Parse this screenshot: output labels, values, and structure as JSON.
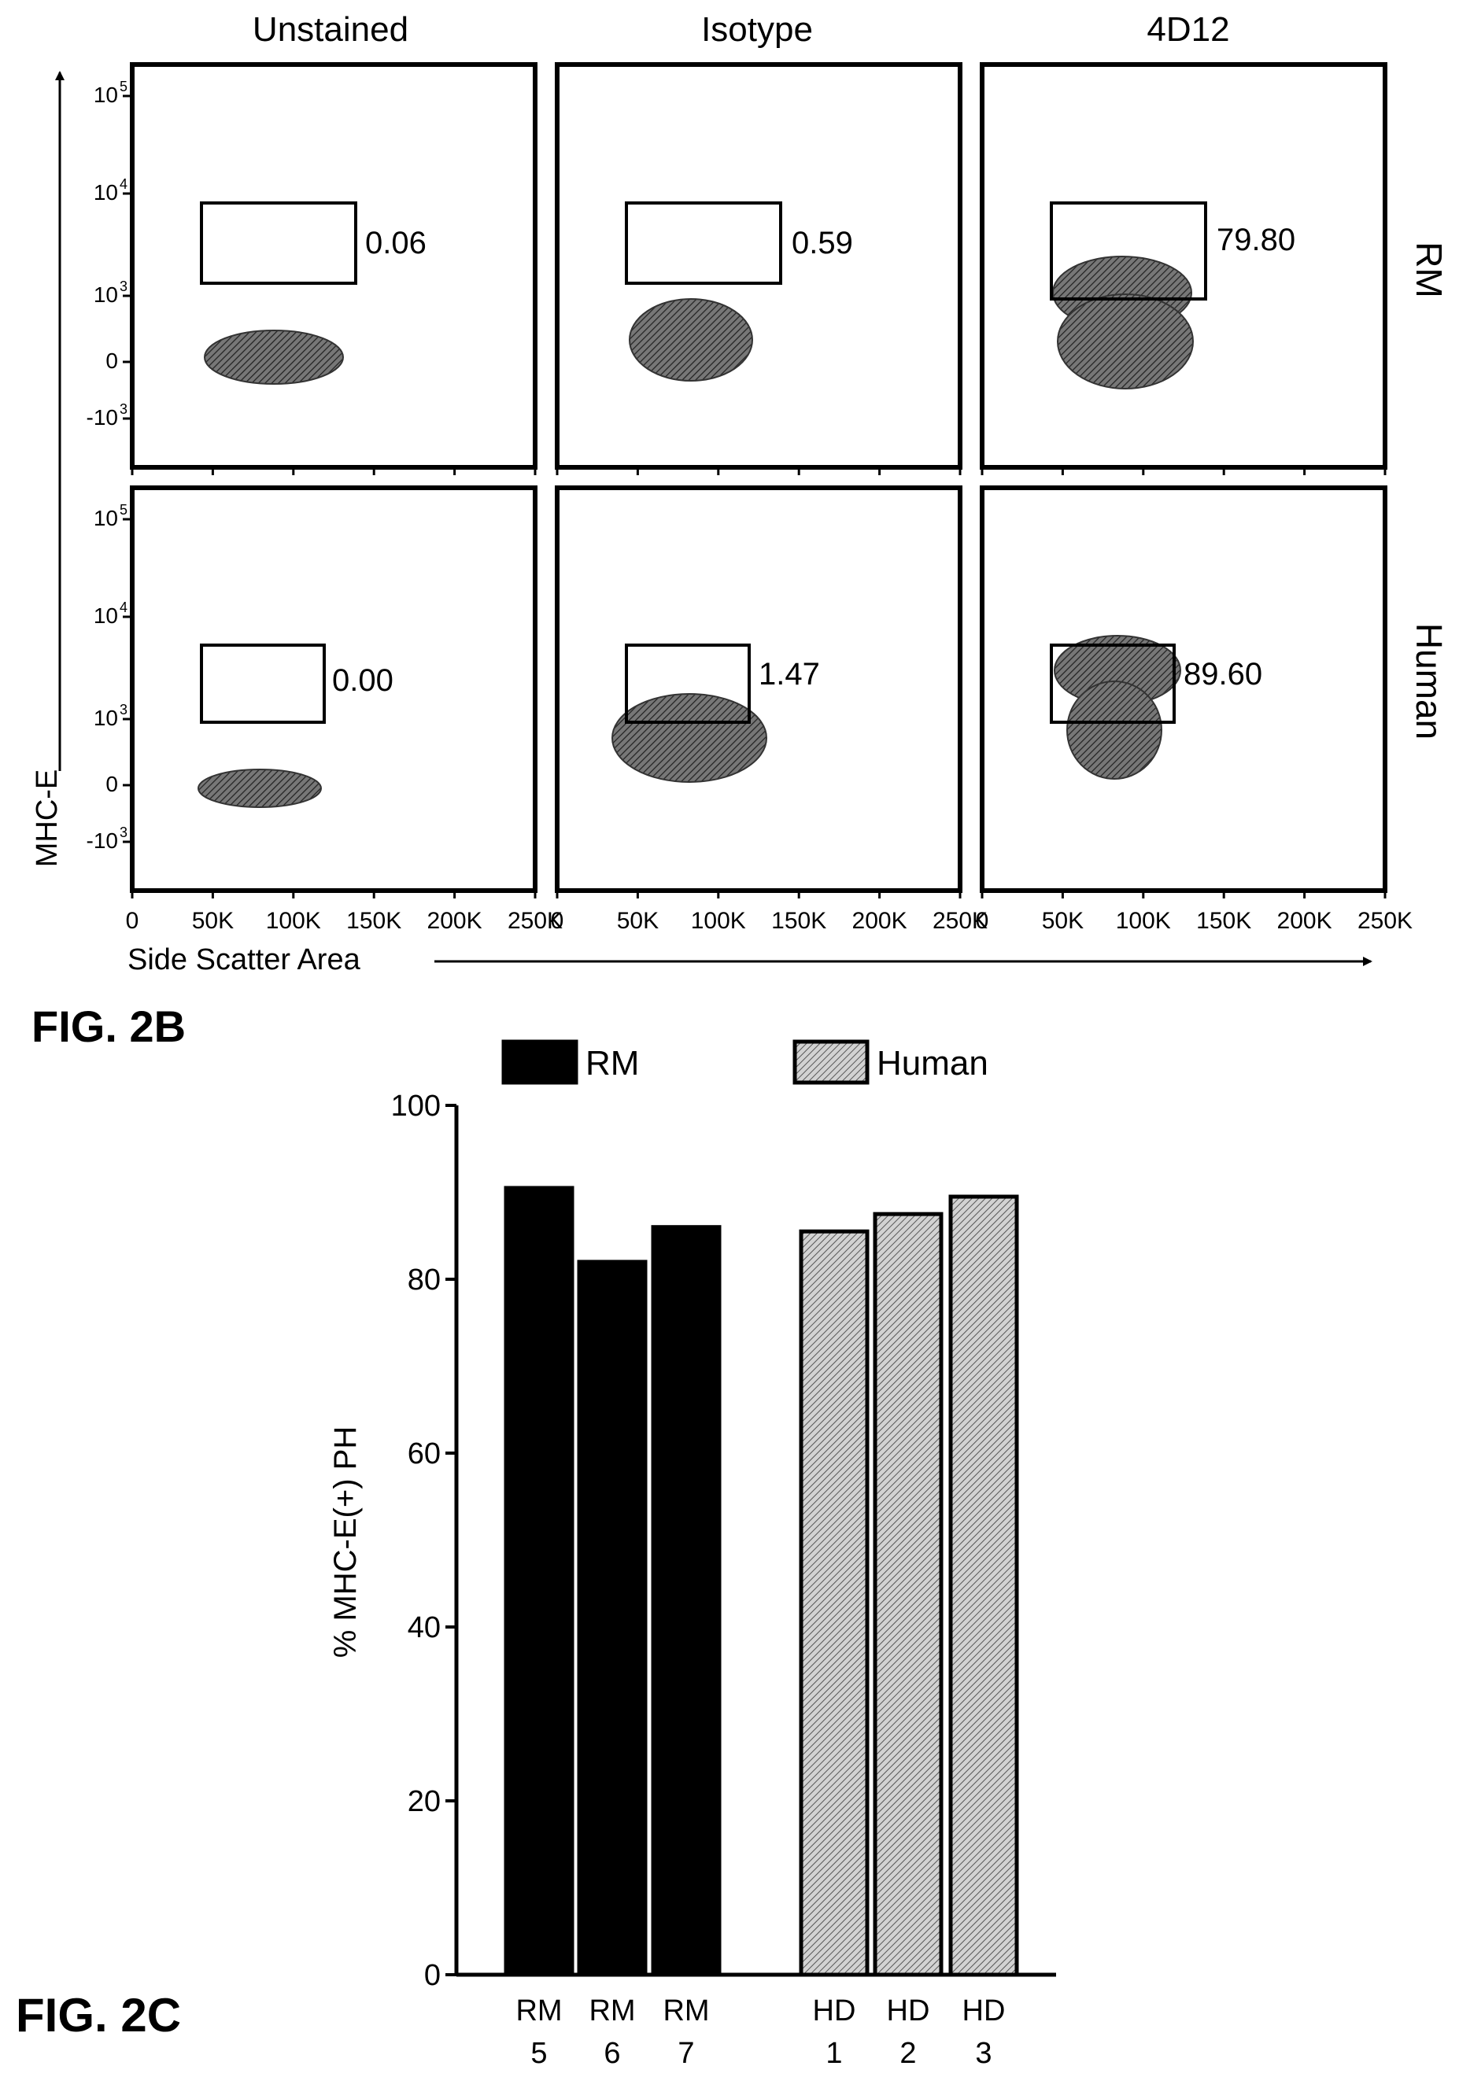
{
  "figure_b": {
    "label": "FIG. 2B",
    "column_titles": [
      "Unstained",
      "Isotype",
      "4D12"
    ],
    "row_labels": [
      "RM",
      "Human"
    ],
    "y_axis_label": "MHC-E",
    "x_axis_label": "Side Scatter Area",
    "y_ticks": [
      "10",
      "10",
      "10",
      "0",
      "-10"
    ],
    "y_tick_exponents": [
      "5",
      "4",
      "3",
      "",
      "3"
    ],
    "x_ticks": [
      "0",
      "50K",
      "100K",
      "150K",
      "200K",
      "250K"
    ]
  },
  "chart_data": [
    {
      "type": "scatter",
      "title": "",
      "xlabel": "Side Scatter Area",
      "ylabel": "MHC-E",
      "x_scale": "linear",
      "y_scale": "biexponential",
      "xlim": [
        0,
        262144
      ],
      "ylim": [
        -1000,
        100000
      ],
      "columns": [
        "Unstained",
        "Isotype",
        "4D12"
      ],
      "rows": [
        "RM",
        "Human"
      ],
      "gate_percentages": [
        {
          "row": "RM",
          "column": "Unstained",
          "value": "0.06"
        },
        {
          "row": "RM",
          "column": "Isotype",
          "value": "0.59"
        },
        {
          "row": "RM",
          "column": "4D12",
          "value": "79.80"
        },
        {
          "row": "Human",
          "column": "Unstained",
          "value": "0.00"
        },
        {
          "row": "Human",
          "column": "Isotype",
          "value": "1.47"
        },
        {
          "row": "Human",
          "column": "4D12",
          "value": "89.60"
        }
      ]
    },
    {
      "type": "bar",
      "title": "",
      "xlabel": "",
      "ylabel": "% MHC-E(+) PH",
      "ylim": [
        0,
        100
      ],
      "y_ticks": [
        0,
        20,
        40,
        60,
        80,
        100
      ],
      "categories": [
        [
          "RM",
          "5"
        ],
        [
          "RM",
          "6"
        ],
        [
          "RM",
          "7"
        ],
        [
          "HD",
          "1"
        ],
        [
          "HD",
          "2"
        ],
        [
          "HD",
          "3"
        ]
      ],
      "series": [
        {
          "name": "RM",
          "color": "#000000",
          "values": [
            90.5,
            82,
            86,
            null,
            null,
            null
          ]
        },
        {
          "name": "Human",
          "color": "#c8c8c8",
          "values": [
            null,
            null,
            null,
            85.5,
            87.5,
            89.5
          ]
        }
      ],
      "legend_position": "top"
    }
  ],
  "figure_c": {
    "label": "FIG. 2C"
  }
}
